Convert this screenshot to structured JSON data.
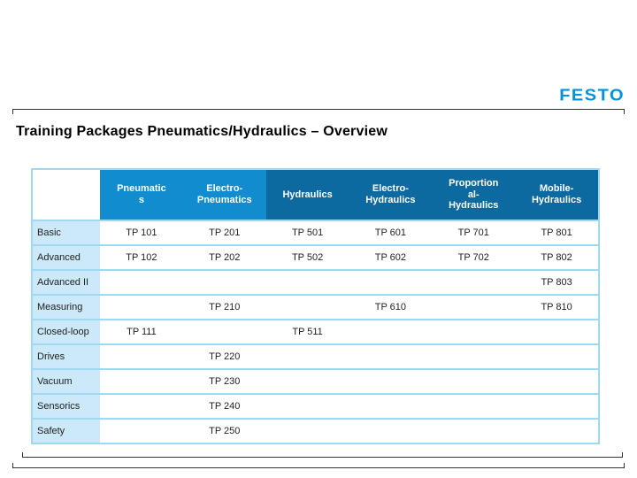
{
  "logo": {
    "text": "FESTO"
  },
  "title": "Training Packages Pneumatics/Hydraulics – Overview",
  "table": {
    "columns": [
      {
        "label": "Pneumatic\ns"
      },
      {
        "label": "Electro-\nPneumatics"
      },
      {
        "label": "Hydraulics"
      },
      {
        "label": "Electro-\nHydraulics"
      },
      {
        "label": "Proportion\nal-\nHydraulics"
      },
      {
        "label": "Mobile-\nHydraulics"
      }
    ],
    "rows": [
      {
        "label": "Basic",
        "cells": [
          "TP 101",
          "TP 201",
          "TP 501",
          "TP 601",
          "TP 701",
          "TP 801"
        ]
      },
      {
        "label": "Advanced",
        "cells": [
          "TP 102",
          "TP 202",
          "TP 502",
          "TP 602",
          "TP 702",
          "TP 802"
        ]
      },
      {
        "label": "Advanced II",
        "cells": [
          "",
          "",
          "",
          "",
          "",
          "TP 803"
        ]
      },
      {
        "label": "Measuring",
        "cells": [
          "",
          "TP 210",
          "",
          "TP 610",
          "",
          "TP 810"
        ]
      },
      {
        "label": "Closed-loop",
        "cells": [
          "TP 111",
          "",
          "TP 511",
          "",
          "",
          ""
        ]
      },
      {
        "label": "Drives",
        "cells": [
          "",
          "TP 220",
          "",
          "",
          "",
          ""
        ]
      },
      {
        "label": "Vacuum",
        "cells": [
          "",
          "TP 230",
          "",
          "",
          "",
          ""
        ]
      },
      {
        "label": "Sensorics",
        "cells": [
          "",
          "TP 240",
          "",
          "",
          "",
          ""
        ]
      },
      {
        "label": "Safety",
        "cells": [
          "",
          "TP 250",
          "",
          "",
          "",
          ""
        ]
      }
    ]
  },
  "colors": {
    "festo_blue": "#0091dc",
    "header_light": "#118ccf",
    "header_dark": "#0c6aa0",
    "label_bg": "#cbe9f8",
    "grid_line": "#9fd8f0",
    "frame_line": "#333333",
    "title_color": "#000000",
    "text_color": "#1f1f1f"
  }
}
